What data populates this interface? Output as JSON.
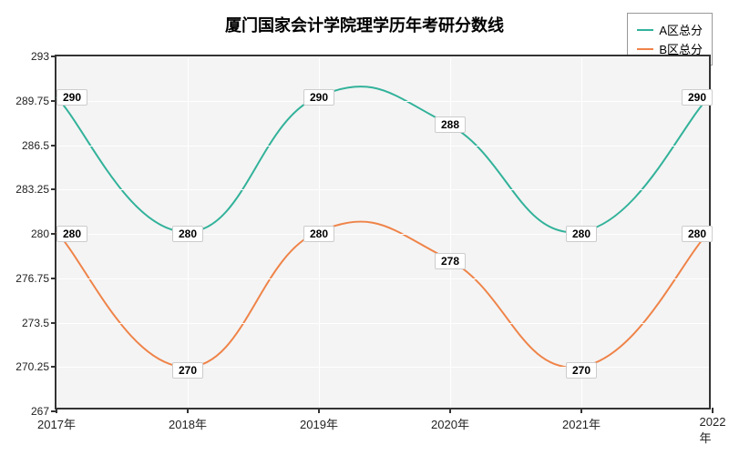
{
  "chart": {
    "type": "line",
    "title": "厦门国家会计学院理学历年考研分数线",
    "title_fontsize": 18,
    "title_color": "#000000",
    "background_color": "#ffffff",
    "plot_background_color": "#f4f4f4",
    "grid_color": "#ffffff",
    "axis_color": "#333333",
    "label_fontsize": 12,
    "x_categories": [
      "2017年",
      "2018年",
      "2019年",
      "2020年",
      "2021年",
      "2022年"
    ],
    "ylim": [
      267,
      293
    ],
    "yticks": [
      267,
      270.25,
      273.5,
      276.75,
      280,
      283.25,
      286.5,
      289.75,
      293
    ],
    "line_width": 2,
    "smooth": true,
    "series": [
      {
        "name": "A区总分",
        "color": "#32b29a",
        "values": [
          290,
          280,
          290,
          288,
          280,
          290
        ]
      },
      {
        "name": "B区总分",
        "color": "#ef8348",
        "values": [
          280,
          270,
          280,
          278,
          270,
          280
        ]
      }
    ],
    "legend": {
      "position": "top-right",
      "border_color": "#999999",
      "background_color": "#ffffff",
      "fontsize": 13
    }
  }
}
